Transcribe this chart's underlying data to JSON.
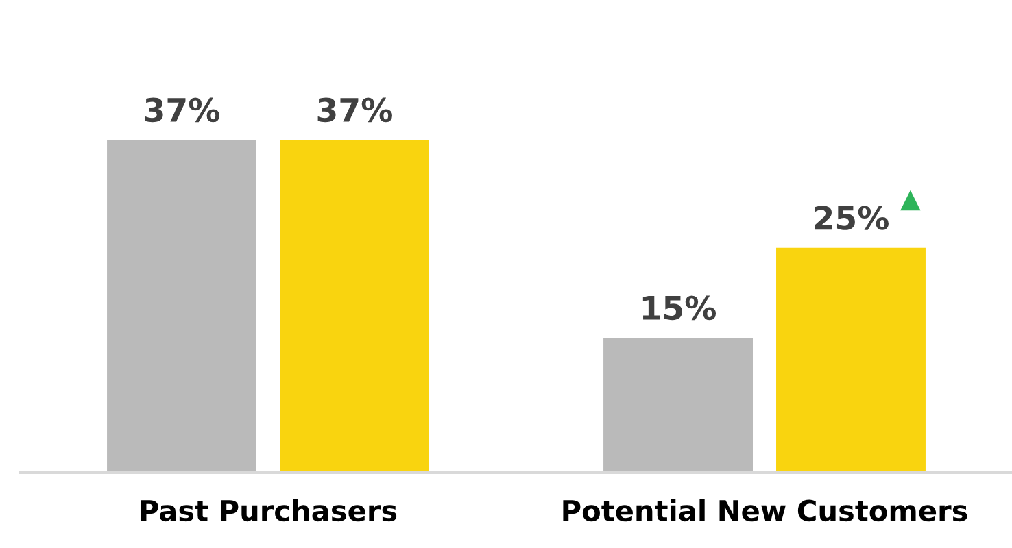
{
  "chart_data": {
    "type": "bar",
    "categories": [
      "Past Purchasers",
      "Potential New Customers"
    ],
    "series": [
      {
        "color": "#bababa",
        "values": [
          37,
          15
        ],
        "value_labels": [
          "37%",
          "15%"
        ]
      },
      {
        "color": "#f9d40f",
        "values": [
          37,
          25
        ],
        "value_labels": [
          "37%",
          "25%"
        ]
      }
    ],
    "tick_labels": "x",
    "grid": false,
    "legend": false
  }
}
